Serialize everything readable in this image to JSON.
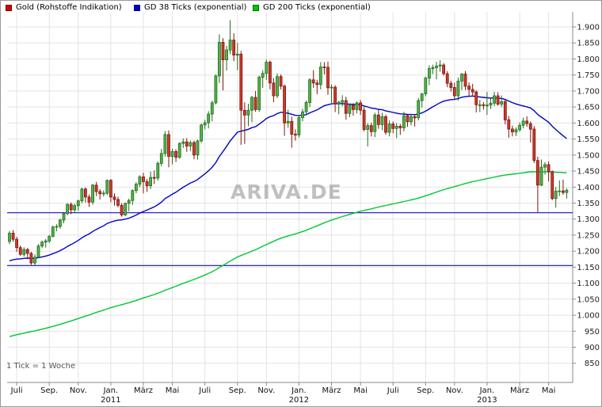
{
  "legend": [
    {
      "label": "Gold (Rohstoffe Indikation)",
      "color": "#d40000"
    },
    {
      "label": "GD 38 Ticks (exponential)",
      "color": "#0000c8"
    },
    {
      "label": "GD 200 Ticks (exponential)",
      "color": "#00c800"
    }
  ],
  "watermark": "ARIVA.DE",
  "footnote": "1 Tick = 1 Woche",
  "chart_data": {
    "type": "candlestick",
    "title": "Gold (Rohstoffe Indikation)",
    "interval_note": "1 Tick = 1 Woche",
    "ylim": [
      850,
      1900
    ],
    "grid": true,
    "grid_color": "#e3e3e3",
    "up_color": "#57b04a",
    "up_border": "#1c6e1c",
    "down_color": "#cf382a",
    "down_border": "#7e150e",
    "y_ticks": [
      {
        "v": 1900,
        "label": "1.900"
      },
      {
        "v": 1850,
        "label": "1.850"
      },
      {
        "v": 1800,
        "label": "1.800"
      },
      {
        "v": 1750,
        "label": "1.750"
      },
      {
        "v": 1700,
        "label": "1.700"
      },
      {
        "v": 1650,
        "label": "1.650"
      },
      {
        "v": 1600,
        "label": "1.600"
      },
      {
        "v": 1550,
        "label": "1.550"
      },
      {
        "v": 1500,
        "label": "1.500"
      },
      {
        "v": 1450,
        "label": "1.450"
      },
      {
        "v": 1400,
        "label": "1.400"
      },
      {
        "v": 1350,
        "label": "1.350"
      },
      {
        "v": 1300,
        "label": "1.300"
      },
      {
        "v": 1250,
        "label": "1.250"
      },
      {
        "v": 1200,
        "label": "1.200"
      },
      {
        "v": 1150,
        "label": "1.150"
      },
      {
        "v": 1100,
        "label": "1.100"
      },
      {
        "v": 1050,
        "label": "1.050"
      },
      {
        "v": 1000,
        "label": "1.000"
      },
      {
        "v": 950,
        "label": "950"
      },
      {
        "v": 900,
        "label": "900"
      },
      {
        "v": 850,
        "label": "850"
      }
    ],
    "x_ticks": [
      {
        "label": "Juli",
        "index": 2
      },
      {
        "label": "Sep.",
        "index": 11
      },
      {
        "label": "Nov.",
        "index": 19
      },
      {
        "label": "Jan.",
        "index": 28,
        "year": "2011"
      },
      {
        "label": "März",
        "index": 37
      },
      {
        "label": "Mai",
        "index": 45
      },
      {
        "label": "Juli",
        "index": 54
      },
      {
        "label": "Sep.",
        "index": 63
      },
      {
        "label": "Nov.",
        "index": 71
      },
      {
        "label": "Jan.",
        "index": 80,
        "year": "2012"
      },
      {
        "label": "März",
        "index": 89
      },
      {
        "label": "Mai",
        "index": 97
      },
      {
        "label": "Juli",
        "index": 106
      },
      {
        "label": "Sep.",
        "index": 115
      },
      {
        "label": "Nov.",
        "index": 123
      },
      {
        "label": "Jan.",
        "index": 132,
        "year": "2013"
      },
      {
        "label": "März",
        "index": 141
      },
      {
        "label": "Mai",
        "index": 149
      }
    ],
    "support_lines": [
      {
        "value": 1320,
        "color": "#2828c8"
      },
      {
        "value": 1155,
        "color": "#2828c8"
      }
    ],
    "moving_averages": [
      {
        "name": "GD 38 Ticks (exponential)",
        "period": 38,
        "seed": 1165,
        "color": "#0000c8"
      },
      {
        "name": "GD 200 Ticks (exponential)",
        "period": 200,
        "seed": 930,
        "color": "#00c832"
      }
    ],
    "candles_ohlc": [
      [
        1230,
        1263,
        1222,
        1256
      ],
      [
        1256,
        1266,
        1229,
        1237
      ],
      [
        1237,
        1245,
        1198,
        1211
      ],
      [
        1211,
        1218,
        1185,
        1190
      ],
      [
        1190,
        1212,
        1183,
        1205
      ],
      [
        1205,
        1210,
        1175,
        1193
      ],
      [
        1193,
        1198,
        1157,
        1163
      ],
      [
        1163,
        1190,
        1156,
        1181
      ],
      [
        1181,
        1222,
        1179,
        1216
      ],
      [
        1216,
        1233,
        1210,
        1228
      ],
      [
        1228,
        1238,
        1211,
        1232
      ],
      [
        1232,
        1251,
        1225,
        1246
      ],
      [
        1246,
        1280,
        1243,
        1275
      ],
      [
        1275,
        1284,
        1262,
        1277
      ],
      [
        1277,
        1301,
        1270,
        1297
      ],
      [
        1297,
        1322,
        1287,
        1317
      ],
      [
        1317,
        1350,
        1312,
        1346
      ],
      [
        1346,
        1352,
        1315,
        1329
      ],
      [
        1329,
        1348,
        1318,
        1342
      ],
      [
        1342,
        1361,
        1325,
        1357
      ],
      [
        1357,
        1398,
        1350,
        1394
      ],
      [
        1394,
        1399,
        1352,
        1369
      ],
      [
        1369,
        1377,
        1338,
        1353
      ],
      [
        1353,
        1410,
        1345,
        1406
      ],
      [
        1406,
        1416,
        1372,
        1386
      ],
      [
        1386,
        1394,
        1361,
        1379
      ],
      [
        1379,
        1390,
        1370,
        1381
      ],
      [
        1381,
        1424,
        1375,
        1421
      ],
      [
        1421,
        1425,
        1353,
        1369
      ],
      [
        1369,
        1380,
        1342,
        1361
      ],
      [
        1361,
        1370,
        1337,
        1343
      ],
      [
        1343,
        1350,
        1308,
        1313
      ],
      [
        1313,
        1352,
        1310,
        1349
      ],
      [
        1349,
        1364,
        1324,
        1358
      ],
      [
        1358,
        1393,
        1344,
        1389
      ],
      [
        1389,
        1415,
        1380,
        1409
      ],
      [
        1409,
        1437,
        1400,
        1432
      ],
      [
        1432,
        1445,
        1380,
        1417
      ],
      [
        1417,
        1425,
        1385,
        1404
      ],
      [
        1404,
        1448,
        1394,
        1430
      ],
      [
        1430,
        1452,
        1410,
        1428
      ],
      [
        1428,
        1480,
        1420,
        1474
      ],
      [
        1474,
        1519,
        1465,
        1505
      ],
      [
        1505,
        1575,
        1495,
        1564
      ],
      [
        1564,
        1577,
        1462,
        1496
      ],
      [
        1496,
        1520,
        1471,
        1511
      ],
      [
        1511,
        1518,
        1478,
        1493
      ],
      [
        1493,
        1540,
        1488,
        1536
      ],
      [
        1536,
        1552,
        1522,
        1541
      ],
      [
        1541,
        1553,
        1510,
        1528
      ],
      [
        1528,
        1545,
        1513,
        1539
      ],
      [
        1539,
        1545,
        1487,
        1500
      ],
      [
        1500,
        1548,
        1486,
        1544
      ],
      [
        1544,
        1598,
        1538,
        1594
      ],
      [
        1594,
        1610,
        1580,
        1601
      ],
      [
        1601,
        1637,
        1583,
        1628
      ],
      [
        1628,
        1670,
        1605,
        1663
      ],
      [
        1663,
        1752,
        1658,
        1747
      ],
      [
        1747,
        1877,
        1725,
        1852
      ],
      [
        1852,
        1865,
        1702,
        1797
      ],
      [
        1797,
        1841,
        1764,
        1828
      ],
      [
        1828,
        1921,
        1815,
        1859
      ],
      [
        1859,
        1880,
        1793,
        1812
      ],
      [
        1812,
        1850,
        1765,
        1815
      ],
      [
        1815,
        1825,
        1532,
        1640
      ],
      [
        1640,
        1665,
        1535,
        1625
      ],
      [
        1625,
        1660,
        1590,
        1640
      ],
      [
        1640,
        1685,
        1603,
        1680
      ],
      [
        1680,
        1700,
        1635,
        1642
      ],
      [
        1642,
        1748,
        1635,
        1743
      ],
      [
        1743,
        1765,
        1710,
        1755
      ],
      [
        1755,
        1798,
        1735,
        1790
      ],
      [
        1790,
        1795,
        1705,
        1725
      ],
      [
        1725,
        1740,
        1665,
        1685
      ],
      [
        1685,
        1755,
        1678,
        1745
      ],
      [
        1745,
        1752,
        1705,
        1715
      ],
      [
        1715,
        1720,
        1560,
        1600
      ],
      [
        1600,
        1642,
        1585,
        1605
      ],
      [
        1605,
        1620,
        1523,
        1565
      ],
      [
        1565,
        1580,
        1545,
        1563
      ],
      [
        1563,
        1625,
        1555,
        1617
      ],
      [
        1617,
        1645,
        1605,
        1635
      ],
      [
        1635,
        1670,
        1625,
        1664
      ],
      [
        1664,
        1740,
        1650,
        1735
      ],
      [
        1735,
        1765,
        1710,
        1725
      ],
      [
        1725,
        1735,
        1690,
        1720
      ],
      [
        1720,
        1790,
        1705,
        1775
      ],
      [
        1775,
        1790,
        1752,
        1774
      ],
      [
        1774,
        1792,
        1688,
        1710
      ],
      [
        1710,
        1720,
        1663,
        1712
      ],
      [
        1712,
        1718,
        1634,
        1660
      ],
      [
        1660,
        1670,
        1627,
        1665
      ],
      [
        1665,
        1687,
        1652,
        1670
      ],
      [
        1670,
        1682,
        1610,
        1630
      ],
      [
        1630,
        1660,
        1618,
        1655
      ],
      [
        1655,
        1662,
        1623,
        1642
      ],
      [
        1642,
        1667,
        1630,
        1663
      ],
      [
        1663,
        1672,
        1625,
        1640
      ],
      [
        1640,
        1650,
        1574,
        1580
      ],
      [
        1580,
        1600,
        1527,
        1592
      ],
      [
        1592,
        1601,
        1558,
        1573
      ],
      [
        1573,
        1632,
        1556,
        1625
      ],
      [
        1625,
        1642,
        1582,
        1595
      ],
      [
        1595,
        1632,
        1578,
        1620
      ],
      [
        1620,
        1626,
        1563,
        1571
      ],
      [
        1571,
        1608,
        1558,
        1597
      ],
      [
        1597,
        1605,
        1568,
        1583
      ],
      [
        1583,
        1600,
        1553,
        1590
      ],
      [
        1590,
        1597,
        1563,
        1585
      ],
      [
        1585,
        1635,
        1574,
        1623
      ],
      [
        1623,
        1627,
        1588,
        1604
      ],
      [
        1604,
        1626,
        1593,
        1620
      ],
      [
        1620,
        1627,
        1589,
        1616
      ],
      [
        1616,
        1678,
        1608,
        1670
      ],
      [
        1670,
        1694,
        1648,
        1691
      ],
      [
        1691,
        1745,
        1683,
        1740
      ],
      [
        1740,
        1780,
        1718,
        1770
      ],
      [
        1770,
        1782,
        1753,
        1773
      ],
      [
        1773,
        1791,
        1736,
        1778
      ],
      [
        1778,
        1796,
        1760,
        1781
      ],
      [
        1781,
        1787,
        1748,
        1754
      ],
      [
        1754,
        1762,
        1712,
        1724
      ],
      [
        1724,
        1732,
        1698,
        1711
      ],
      [
        1711,
        1726,
        1672,
        1685
      ],
      [
        1685,
        1742,
        1670,
        1731
      ],
      [
        1731,
        1756,
        1703,
        1753
      ],
      [
        1753,
        1762,
        1703,
        1715
      ],
      [
        1715,
        1727,
        1682,
        1705
      ],
      [
        1705,
        1722,
        1683,
        1697
      ],
      [
        1697,
        1702,
        1633,
        1657
      ],
      [
        1657,
        1672,
        1634,
        1657
      ],
      [
        1657,
        1665,
        1642,
        1656
      ],
      [
        1656,
        1697,
        1625,
        1656
      ],
      [
        1656,
        1677,
        1644,
        1662
      ],
      [
        1662,
        1697,
        1653,
        1685
      ],
      [
        1685,
        1696,
        1654,
        1659
      ],
      [
        1659,
        1686,
        1650,
        1667
      ],
      [
        1667,
        1672,
        1596,
        1610
      ],
      [
        1610,
        1622,
        1554,
        1581
      ],
      [
        1581,
        1592,
        1558,
        1572
      ],
      [
        1572,
        1586,
        1559,
        1579
      ],
      [
        1579,
        1602,
        1573,
        1593
      ],
      [
        1593,
        1617,
        1583,
        1606
      ],
      [
        1606,
        1621,
        1588,
        1598
      ],
      [
        1598,
        1605,
        1539,
        1581
      ],
      [
        1581,
        1591,
        1475,
        1483
      ],
      [
        1483,
        1495,
        1321,
        1406
      ],
      [
        1406,
        1486,
        1403,
        1462
      ],
      [
        1462,
        1478,
        1439,
        1470
      ],
      [
        1470,
        1480,
        1418,
        1448
      ],
      [
        1448,
        1452,
        1359,
        1364
      ],
      [
        1364,
        1400,
        1336,
        1387
      ],
      [
        1387,
        1421,
        1372,
        1388
      ],
      [
        1388,
        1423,
        1376,
        1383
      ],
      [
        1383,
        1396,
        1364,
        1390
      ]
    ]
  }
}
